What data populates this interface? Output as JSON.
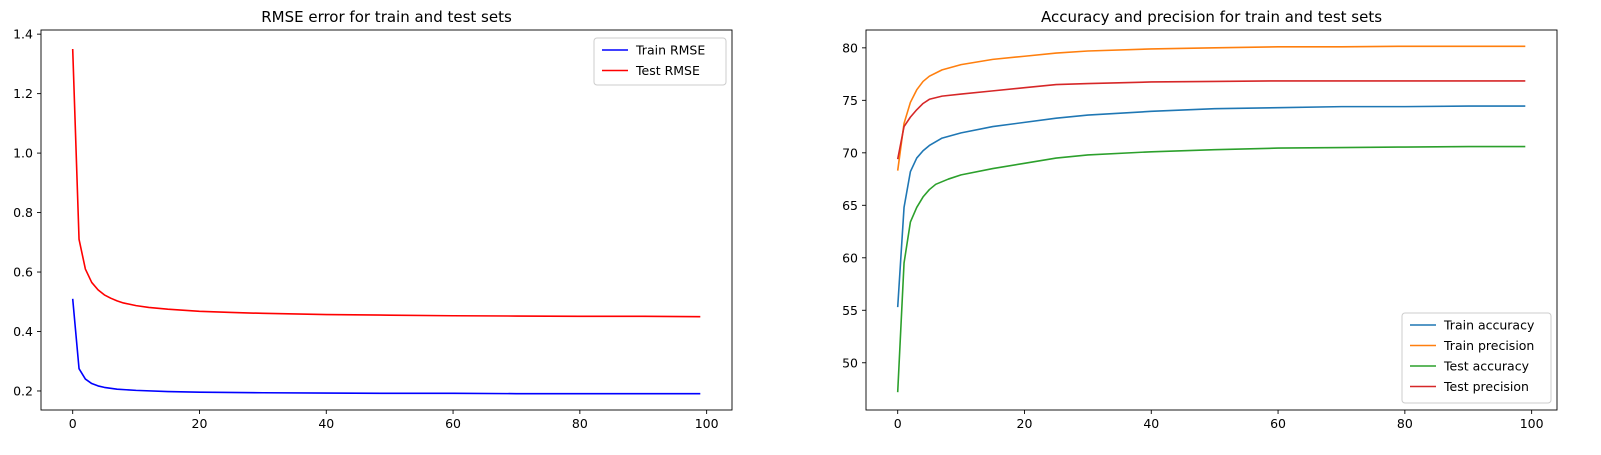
{
  "chart_data": [
    {
      "type": "line",
      "title": "RMSE error for train and test sets",
      "xlabel": "",
      "ylabel": "",
      "xlim": [
        -5,
        104
      ],
      "ylim": [
        0.136,
        1.414
      ],
      "xticks": [
        "0",
        "20",
        "40",
        "60",
        "80",
        "100"
      ],
      "yticks": [
        "0.2",
        "0.4",
        "0.6",
        "0.8",
        "1.0",
        "1.2",
        "1.4"
      ],
      "legend_position": "top-right",
      "series": [
        {
          "name": "Train RMSE",
          "color": "#0000ff",
          "points": [
            [
              0,
              0.51
            ],
            [
              1,
              0.275
            ],
            [
              2,
              0.24
            ],
            [
              3,
              0.225
            ],
            [
              4,
              0.217
            ],
            [
              5,
              0.212
            ],
            [
              7,
              0.206
            ],
            [
              10,
              0.202
            ],
            [
              15,
              0.198
            ],
            [
              20,
              0.196
            ],
            [
              30,
              0.194
            ],
            [
              40,
              0.193
            ],
            [
              50,
              0.192
            ],
            [
              60,
              0.192
            ],
            [
              70,
              0.191
            ],
            [
              80,
              0.191
            ],
            [
              90,
              0.191
            ],
            [
              99,
              0.191
            ]
          ]
        },
        {
          "name": "Test RMSE",
          "color": "#ff0000",
          "points": [
            [
              0,
              1.35
            ],
            [
              1,
              0.71
            ],
            [
              2,
              0.61
            ],
            [
              3,
              0.565
            ],
            [
              4,
              0.54
            ],
            [
              5,
              0.523
            ],
            [
              6,
              0.512
            ],
            [
              7,
              0.503
            ],
            [
              8,
              0.496
            ],
            [
              10,
              0.487
            ],
            [
              12,
              0.481
            ],
            [
              15,
              0.475
            ],
            [
              20,
              0.468
            ],
            [
              25,
              0.464
            ],
            [
              30,
              0.461
            ],
            [
              40,
              0.457
            ],
            [
              50,
              0.455
            ],
            [
              60,
              0.453
            ],
            [
              70,
              0.452
            ],
            [
              80,
              0.451
            ],
            [
              90,
              0.451
            ],
            [
              99,
              0.45
            ]
          ]
        }
      ]
    },
    {
      "type": "line",
      "title": "Accuracy and precision for train and test sets",
      "xlabel": "",
      "ylabel": "",
      "xlim": [
        -5,
        104
      ],
      "ylim": [
        45.5,
        81.7
      ],
      "xticks": [
        "0",
        "20",
        "40",
        "60",
        "80",
        "100"
      ],
      "yticks": [
        "50",
        "55",
        "60",
        "65",
        "70",
        "75",
        "80"
      ],
      "legend_position": "lower-right",
      "series": [
        {
          "name": "Train accuracy",
          "color": "#1f77b4",
          "points": [
            [
              0,
              55.3
            ],
            [
              1,
              64.8
            ],
            [
              2,
              68.2
            ],
            [
              3,
              69.5
            ],
            [
              4,
              70.2
            ],
            [
              5,
              70.7
            ],
            [
              7,
              71.4
            ],
            [
              10,
              71.9
            ],
            [
              15,
              72.5
            ],
            [
              20,
              72.9
            ],
            [
              25,
              73.3
            ],
            [
              30,
              73.6
            ],
            [
              40,
              73.95
            ],
            [
              50,
              74.2
            ],
            [
              60,
              74.3
            ],
            [
              70,
              74.4
            ],
            [
              80,
              74.4
            ],
            [
              90,
              74.45
            ],
            [
              99,
              74.45
            ]
          ]
        },
        {
          "name": "Train precision",
          "color": "#ff7f0e",
          "points": [
            [
              0,
              68.3
            ],
            [
              1,
              72.8
            ],
            [
              2,
              74.8
            ],
            [
              3,
              76.0
            ],
            [
              4,
              76.8
            ],
            [
              5,
              77.3
            ],
            [
              7,
              77.9
            ],
            [
              10,
              78.4
            ],
            [
              15,
              78.9
            ],
            [
              20,
              79.2
            ],
            [
              25,
              79.5
            ],
            [
              30,
              79.7
            ],
            [
              40,
              79.9
            ],
            [
              50,
              80.0
            ],
            [
              60,
              80.1
            ],
            [
              70,
              80.1
            ],
            [
              80,
              80.15
            ],
            [
              90,
              80.15
            ],
            [
              99,
              80.15
            ]
          ]
        },
        {
          "name": "Test accuracy",
          "color": "#2ca02c",
          "points": [
            [
              0,
              47.2
            ],
            [
              1,
              59.5
            ],
            [
              2,
              63.4
            ],
            [
              3,
              64.8
            ],
            [
              4,
              65.8
            ],
            [
              5,
              66.5
            ],
            [
              6,
              67.0
            ],
            [
              8,
              67.5
            ],
            [
              10,
              67.9
            ],
            [
              15,
              68.5
            ],
            [
              20,
              69.0
            ],
            [
              25,
              69.5
            ],
            [
              30,
              69.8
            ],
            [
              40,
              70.1
            ],
            [
              50,
              70.3
            ],
            [
              60,
              70.45
            ],
            [
              70,
              70.5
            ],
            [
              80,
              70.55
            ],
            [
              90,
              70.6
            ],
            [
              99,
              70.6
            ]
          ]
        },
        {
          "name": "Test precision",
          "color": "#d62728",
          "points": [
            [
              0,
              69.4
            ],
            [
              1,
              72.5
            ],
            [
              2,
              73.4
            ],
            [
              3,
              74.1
            ],
            [
              4,
              74.7
            ],
            [
              5,
              75.1
            ],
            [
              7,
              75.4
            ],
            [
              10,
              75.6
            ],
            [
              15,
              75.9
            ],
            [
              20,
              76.2
            ],
            [
              25,
              76.5
            ],
            [
              30,
              76.6
            ],
            [
              40,
              76.75
            ],
            [
              50,
              76.8
            ],
            [
              60,
              76.85
            ],
            [
              70,
              76.85
            ],
            [
              80,
              76.85
            ],
            [
              90,
              76.85
            ],
            [
              99,
              76.85
            ]
          ]
        }
      ]
    }
  ]
}
